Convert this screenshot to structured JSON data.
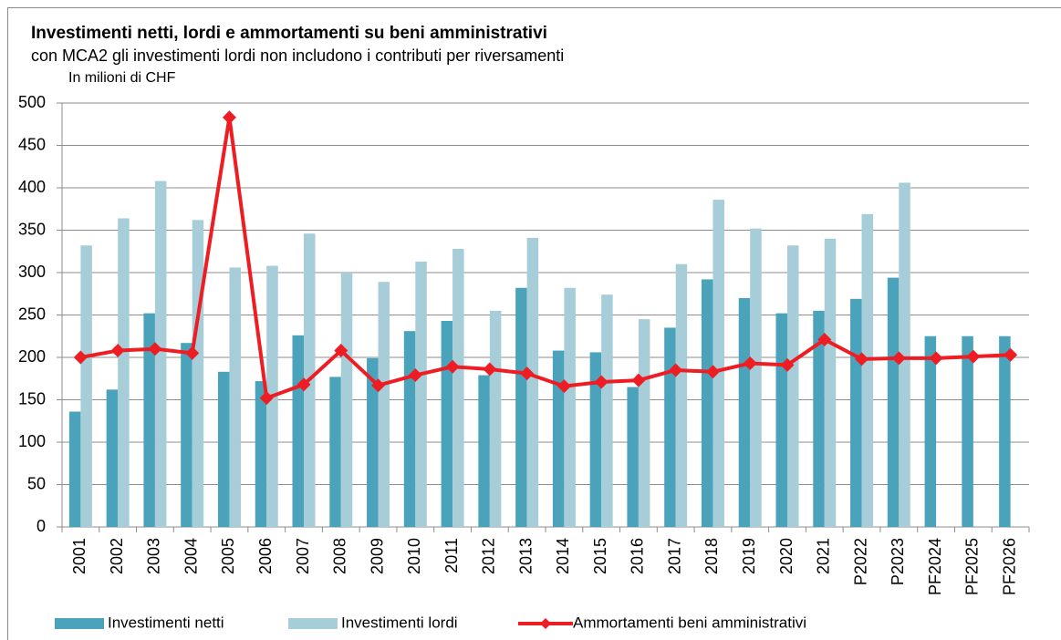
{
  "chart_data": {
    "type": "bar_line",
    "title": "Investimenti netti, lordi e ammortamenti su beni amministrativi",
    "subtitle": "con MCA2 gli investimenti lordi non includono i contributi per riversamenti",
    "y_axis_label": "In milioni di CHF",
    "categories": [
      "2001",
      "2002",
      "2003",
      "2004",
      "2005",
      "2006",
      "2007",
      "2008",
      "2009",
      "2010",
      "2011",
      "2012",
      "2013",
      "2014",
      "2015",
      "2016",
      "2017",
      "2018",
      "2019",
      "2020",
      "2021",
      "P2022",
      "P2023",
      "PF2024",
      "PF2025",
      "PF2026"
    ],
    "series": [
      {
        "name": "Investimenti netti",
        "color": "#4ba3bb",
        "kind": "bar",
        "values": [
          136,
          162,
          252,
          217,
          183,
          172,
          226,
          177,
          199,
          231,
          243,
          179,
          282,
          208,
          206,
          165,
          235,
          292,
          270,
          252,
          255,
          269,
          294,
          225,
          225,
          225
        ]
      },
      {
        "name": "Investimenti lordi",
        "color": "#a6cdd8",
        "kind": "bar",
        "values": [
          332,
          364,
          408,
          362,
          306,
          308,
          346,
          300,
          289,
          313,
          328,
          255,
          341,
          282,
          274,
          245,
          310,
          386,
          352,
          332,
          340,
          369,
          406,
          null,
          null,
          null
        ]
      },
      {
        "name": "Ammortamenti beni amministrativi",
        "color": "#ee1d23",
        "kind": "line",
        "values": [
          200,
          208,
          210,
          205,
          483,
          152,
          168,
          208,
          167,
          179,
          189,
          186,
          181,
          166,
          171,
          173,
          185,
          183,
          193,
          191,
          221,
          198,
          199,
          199,
          201,
          203
        ]
      }
    ],
    "ylim": [
      0,
      500
    ],
    "yticks": [
      0,
      50,
      100,
      150,
      200,
      250,
      300,
      350,
      400,
      450,
      500
    ],
    "grid": true
  }
}
